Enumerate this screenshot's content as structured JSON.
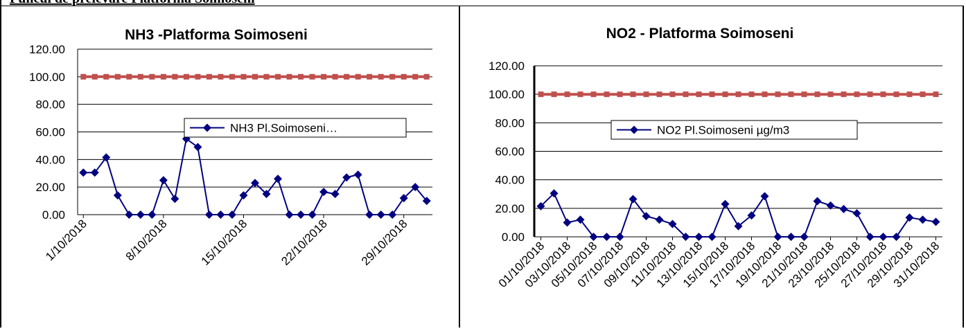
{
  "document": {
    "heading": "Puncul de prelevare Platforma Soimoseni"
  },
  "chart_data": [
    {
      "type": "line",
      "title": "NH3 -Platforma Soimoseni",
      "xlabel": "",
      "ylabel": "",
      "ylim": [
        0,
        120
      ],
      "yticks": [
        "0.00",
        "20.00",
        "40.00",
        "60.00",
        "80.00",
        "100.00",
        "120.00"
      ],
      "x": [
        "1/10/2018",
        "2/10/2018",
        "3/10/2018",
        "4/10/2018",
        "5/10/2018",
        "6/10/2018",
        "7/10/2018",
        "8/10/2018",
        "9/10/2018",
        "10/10/2018",
        "11/10/2018",
        "12/10/2018",
        "13/10/2018",
        "14/10/2018",
        "15/10/2018",
        "16/10/2018",
        "17/10/2018",
        "18/10/2018",
        "19/10/2018",
        "20/10/2018",
        "21/10/2018",
        "22/10/2018",
        "23/10/2018",
        "24/10/2018",
        "25/10/2018",
        "26/10/2018",
        "27/10/2018",
        "28/10/2018",
        "29/10/2018",
        "30/10/2018",
        "31/10/2018"
      ],
      "xtick_labels": [
        "1/10/2018",
        "8/10/2018",
        "15/10/2018",
        "22/10/2018",
        "29/10/2018"
      ],
      "xtick_every": 7,
      "grid": true,
      "legend_position": "center",
      "series": [
        {
          "name": "NH3 Pl.Soimoseni…",
          "color": "#000080",
          "marker": "diamond",
          "values": [
            30.5,
            30.5,
            41.5,
            14,
            0,
            0,
            0,
            25,
            11.5,
            55,
            49,
            0,
            0,
            0,
            14,
            23,
            15,
            26,
            0,
            0,
            0,
            16.5,
            15,
            27,
            29,
            0,
            0,
            0,
            12,
            20,
            10
          ]
        },
        {
          "name": "",
          "color": "#C0504D",
          "marker": "square",
          "values": [
            100,
            100,
            100,
            100,
            100,
            100,
            100,
            100,
            100,
            100,
            100,
            100,
            100,
            100,
            100,
            100,
            100,
            100,
            100,
            100,
            100,
            100,
            100,
            100,
            100,
            100,
            100,
            100,
            100,
            100,
            100
          ]
        }
      ]
    },
    {
      "type": "line",
      "title": "NO2 - Platforma Soimoseni",
      "xlabel": "",
      "ylabel": "",
      "ylim": [
        0,
        120
      ],
      "yticks": [
        "0.00",
        "20.00",
        "40.00",
        "60.00",
        "80.00",
        "100.00",
        "120.00"
      ],
      "x": [
        "01/10/2018",
        "02/10/2018",
        "03/10/2018",
        "04/10/2018",
        "05/10/2018",
        "06/10/2018",
        "07/10/2018",
        "08/10/2018",
        "09/10/2018",
        "10/10/2018",
        "11/10/2018",
        "12/10/2018",
        "13/10/2018",
        "14/10/2018",
        "15/10/2018",
        "16/10/2018",
        "17/10/2018",
        "18/10/2018",
        "19/10/2018",
        "20/10/2018",
        "21/10/2018",
        "22/10/2018",
        "23/10/2018",
        "24/10/2018",
        "25/10/2018",
        "26/10/2018",
        "27/10/2018",
        "28/10/2018",
        "29/10/2018",
        "30/10/2018",
        "31/10/2018"
      ],
      "xtick_labels": [
        "01/10/2018",
        "03/10/2018",
        "05/10/2018",
        "07/10/2018",
        "09/10/2018",
        "11/10/2018",
        "13/10/2018",
        "15/10/2018",
        "17/10/2018",
        "19/10/2018",
        "21/10/2018",
        "23/10/2018",
        "25/10/2018",
        "27/10/2018",
        "29/10/2018",
        "31/10/2018"
      ],
      "xtick_every": 2,
      "grid": true,
      "legend_position": "center",
      "series": [
        {
          "name": "NO2 Pl.Soimoseni µg/m3",
          "color": "#000080",
          "marker": "diamond",
          "values": [
            21.5,
            30.5,
            10,
            12,
            0,
            0,
            0,
            26.5,
            14.5,
            12,
            9,
            0,
            0,
            0,
            23,
            7.5,
            15,
            28.5,
            0,
            0,
            0,
            25,
            22,
            19.5,
            16.5,
            0,
            0,
            0,
            13.5,
            12,
            10.5
          ]
        },
        {
          "name": "",
          "color": "#C0504D",
          "marker": "square",
          "values": [
            100,
            100,
            100,
            100,
            100,
            100,
            100,
            100,
            100,
            100,
            100,
            100,
            100,
            100,
            100,
            100,
            100,
            100,
            100,
            100,
            100,
            100,
            100,
            100,
            100,
            100,
            100,
            100,
            100,
            100,
            100
          ]
        }
      ]
    }
  ]
}
